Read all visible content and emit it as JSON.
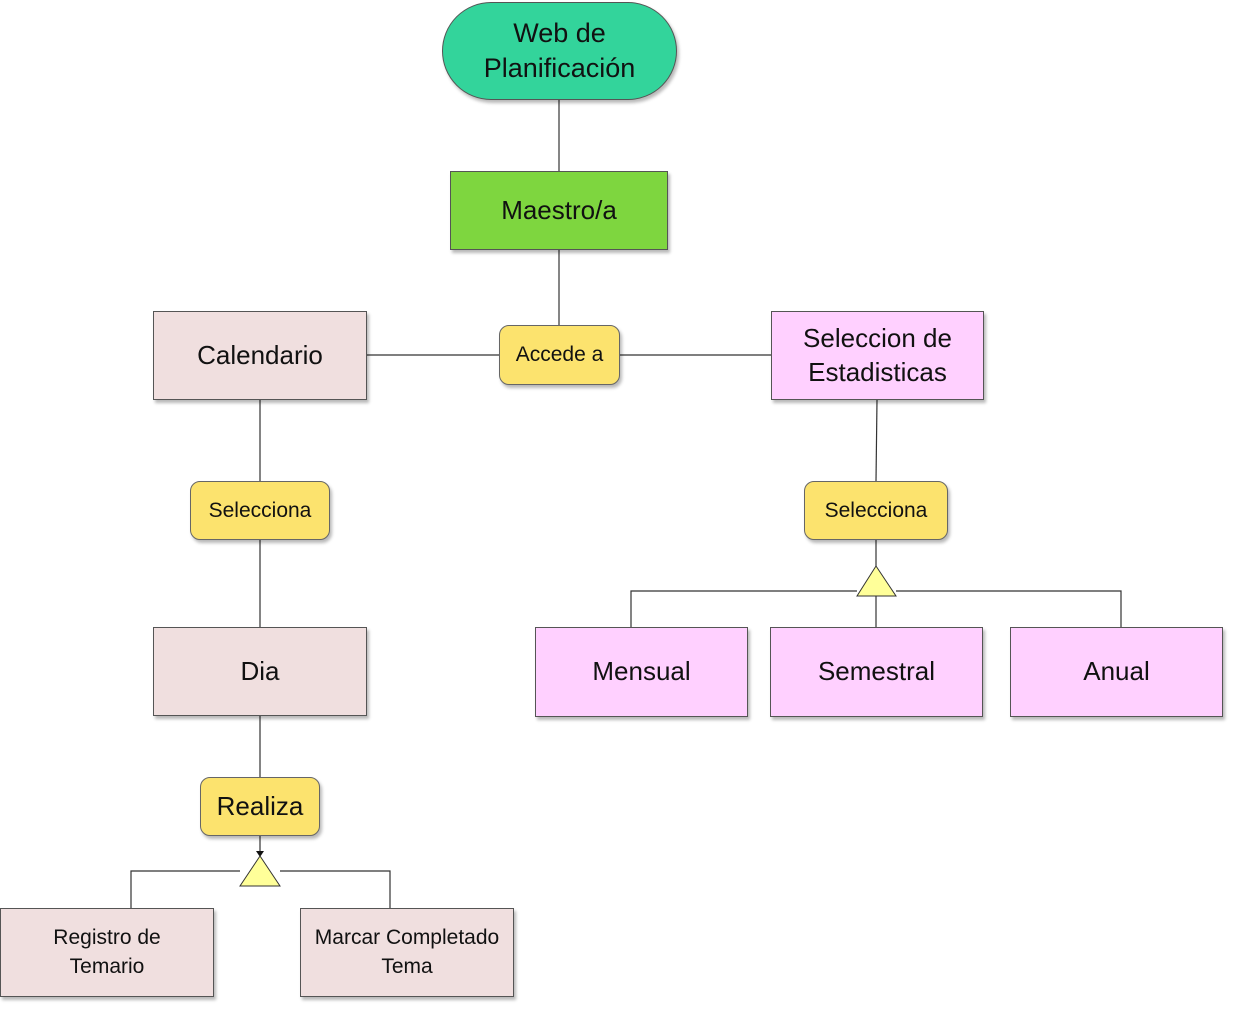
{
  "nodes": {
    "web": "Web de Planificación",
    "maestro": "Maestro/a",
    "accede": "Accede a",
    "calendario": "Calendario",
    "estadisticas": "Seleccion de Estadisticas",
    "selecciona_cal": "Selecciona",
    "selecciona_est": "Selecciona",
    "dia": "Dia",
    "realiza": "Realiza",
    "registro": "Registro de Temario",
    "marcar": "Marcar Completado Tema",
    "mensual": "Mensual",
    "semestral": "Semestral",
    "anual": "Anual"
  },
  "colors": {
    "start": "#33d49b",
    "actor": "#7ed63f",
    "relation": "#fce36e",
    "calendar_branch": "#f0dfdf",
    "stats_branch": "#ffd0ff",
    "generalization_triangle": "#ffff99"
  }
}
